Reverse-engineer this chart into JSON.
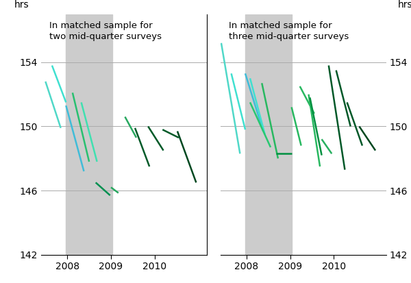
{
  "title_left": "In matched sample for\ntwo mid-quarter surveys",
  "title_right": "In matched sample for\nthree mid-quarter surveys",
  "ylabel": "hrs",
  "ylim": [
    142,
    157
  ],
  "yticks": [
    142,
    146,
    150,
    154
  ],
  "xlim": [
    2007.4,
    2011.2
  ],
  "xticks": [
    2008,
    2009,
    2010
  ],
  "shade_xmin": 2007.97,
  "shade_xmax": 2009.03,
  "background_color": "#ffffff",
  "shade_color": "#cccccc",
  "left_lines": [
    {
      "x": [
        2007.5,
        2007.85
      ],
      "y": [
        152.8,
        149.9
      ],
      "color": "#50D8C8"
    },
    {
      "x": [
        2007.65,
        2007.97
      ],
      "y": [
        153.8,
        151.5
      ],
      "color": "#40E0D0"
    },
    {
      "x": [
        2007.97,
        2008.38
      ],
      "y": [
        151.3,
        147.2
      ],
      "color": "#40BCD8"
    },
    {
      "x": [
        2008.12,
        2008.5
      ],
      "y": [
        152.1,
        147.8
      ],
      "color": "#28C070"
    },
    {
      "x": [
        2008.32,
        2008.68
      ],
      "y": [
        151.5,
        147.8
      ],
      "color": "#40E0B0"
    },
    {
      "x": [
        2008.65,
        2008.98
      ],
      "y": [
        146.5,
        145.7
      ],
      "color": "#009050"
    },
    {
      "x": [
        2009.0,
        2009.17
      ],
      "y": [
        146.2,
        145.85
      ],
      "color": "#28A860"
    },
    {
      "x": [
        2009.32,
        2009.58
      ],
      "y": [
        150.6,
        149.3
      ],
      "color": "#28A860"
    },
    {
      "x": [
        2009.55,
        2009.88
      ],
      "y": [
        149.9,
        147.5
      ],
      "color": "#005A28"
    },
    {
      "x": [
        2009.85,
        2010.2
      ],
      "y": [
        150.0,
        148.5
      ],
      "color": "#005A28"
    },
    {
      "x": [
        2010.18,
        2010.55
      ],
      "y": [
        149.8,
        149.3
      ],
      "color": "#005A28"
    },
    {
      "x": [
        2010.52,
        2010.95
      ],
      "y": [
        149.7,
        146.5
      ],
      "color": "#004820"
    }
  ],
  "right_lines": [
    {
      "x": [
        2007.42,
        2007.85
      ],
      "y": [
        155.2,
        148.3
      ],
      "color": "#50D8C8"
    },
    {
      "x": [
        2007.65,
        2007.97
      ],
      "y": [
        153.3,
        149.8
      ],
      "color": "#40E0D0"
    },
    {
      "x": [
        2007.97,
        2008.38
      ],
      "y": [
        153.3,
        149.7
      ],
      "color": "#40BCD8"
    },
    {
      "x": [
        2008.08,
        2008.42
      ],
      "y": [
        153.0,
        149.5
      ],
      "color": "#40E0D0"
    },
    {
      "x": [
        2008.08,
        2008.55
      ],
      "y": [
        151.5,
        148.7
      ],
      "color": "#28C870"
    },
    {
      "x": [
        2008.35,
        2008.72
      ],
      "y": [
        152.7,
        148.0
      ],
      "color": "#28B860"
    },
    {
      "x": [
        2008.68,
        2009.03
      ],
      "y": [
        148.3,
        148.3
      ],
      "color": "#009040"
    },
    {
      "x": [
        2009.03,
        2009.25
      ],
      "y": [
        151.2,
        148.8
      ],
      "color": "#28B860"
    },
    {
      "x": [
        2009.22,
        2009.55
      ],
      "y": [
        152.5,
        150.8
      ],
      "color": "#28B860"
    },
    {
      "x": [
        2009.42,
        2009.68
      ],
      "y": [
        152.0,
        147.5
      ],
      "color": "#28B860"
    },
    {
      "x": [
        2009.45,
        2009.72
      ],
      "y": [
        151.8,
        148.2
      ],
      "color": "#009040"
    },
    {
      "x": [
        2009.72,
        2009.95
      ],
      "y": [
        149.2,
        148.3
      ],
      "color": "#28B060"
    },
    {
      "x": [
        2009.88,
        2010.25
      ],
      "y": [
        153.8,
        147.3
      ],
      "color": "#005828"
    },
    {
      "x": [
        2010.05,
        2010.38
      ],
      "y": [
        153.5,
        150.0
      ],
      "color": "#005828"
    },
    {
      "x": [
        2010.3,
        2010.65
      ],
      "y": [
        151.5,
        148.8
      ],
      "color": "#005828"
    },
    {
      "x": [
        2010.58,
        2010.95
      ],
      "y": [
        150.0,
        148.5
      ],
      "color": "#004820"
    }
  ]
}
